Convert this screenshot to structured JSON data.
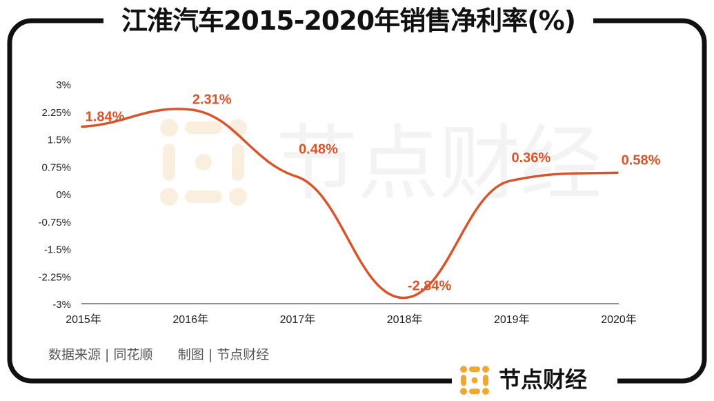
{
  "title": "江淮汽车2015-2020年销售净利率(%)",
  "source_text": "数据来源 | 同花顺      制图 | 节点财经",
  "brand": {
    "name": "节点财经",
    "logo_icon": "node-finance-logo-icon"
  },
  "watermark_text": "节点财经",
  "colors": {
    "line": "#d9542b",
    "label": "#d9542b",
    "frame": "#111111",
    "logo": "#f0a830",
    "axis_text": "#222222",
    "watermark": "#f2f2f2"
  },
  "chart_data": {
    "type": "line",
    "title": "江淮汽车2015-2020年销售净利率(%)",
    "xlabel": "",
    "ylabel": "",
    "categories": [
      "2015年",
      "2016年",
      "2017年",
      "2018年",
      "2019年",
      "2020年"
    ],
    "series": [
      {
        "values": [
          1.84,
          2.31,
          0.48,
          -2.84,
          0.36,
          0.58
        ]
      }
    ],
    "data_labels": [
      "1.84%",
      "2.31%",
      "0.48%",
      "-2.84%",
      "0.36%",
      "0.58%"
    ],
    "ylim": [
      -3,
      3
    ],
    "yticks": [
      3,
      2.25,
      1.5,
      0.75,
      0,
      -0.75,
      -1.5,
      -2.25,
      -3
    ],
    "ytick_labels": [
      "3%",
      "2.25%",
      "1.5%",
      "0.75%",
      "0%",
      "-0.75%",
      "-1.5%",
      "-2.25%",
      "-3%"
    ],
    "smooth": true,
    "grid": false,
    "legend": "none"
  }
}
